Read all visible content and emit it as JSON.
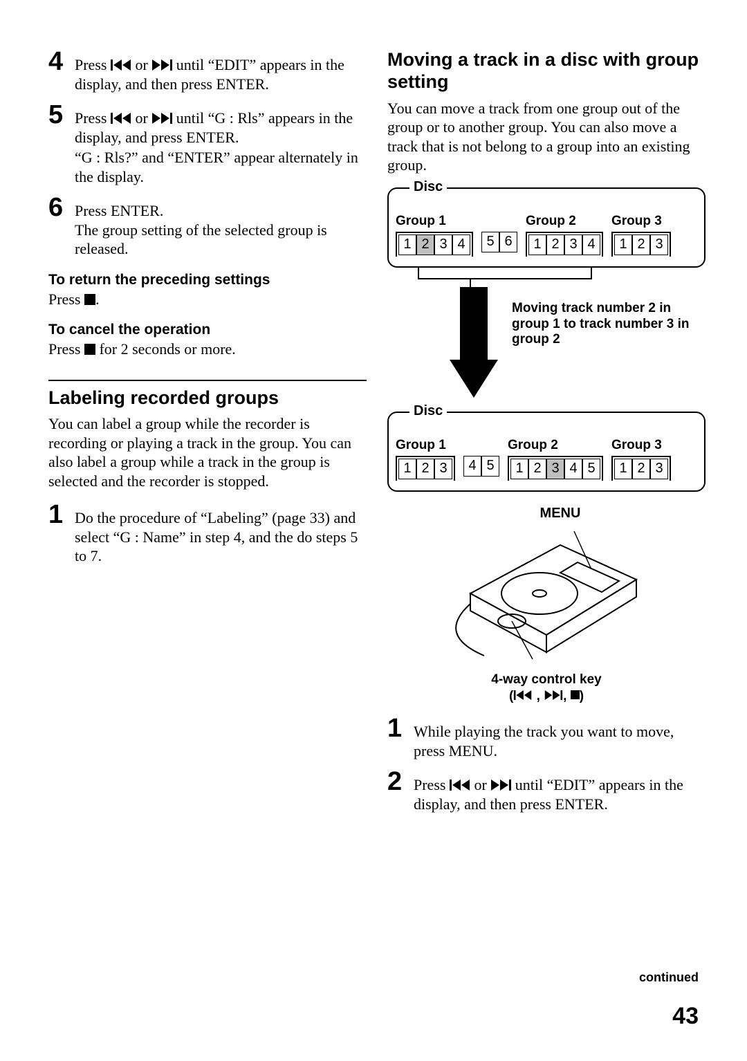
{
  "left": {
    "step4": {
      "n": "4",
      "pre": "Press ",
      "mid": " or ",
      "post": " until “EDIT” appears in the display, and then press ENTER."
    },
    "step5": {
      "n": "5",
      "pre": "Press ",
      "mid": " or ",
      "post": " until “G : Rls” appears in the display, and press ENTER.",
      "line2": "“G : Rls?” and “ENTER” appear alternately in the display."
    },
    "step6": {
      "n": "6",
      "line1": "Press ENTER.",
      "line2": "The group setting of the selected group is released."
    },
    "return_head": "To return the preceding settings",
    "return_body_pre": "Press ",
    "return_body_post": ".",
    "cancel_head": "To cancel the operation",
    "cancel_body_pre": "Press ",
    "cancel_body_post": " for 2 seconds or more.",
    "labeling_head": "Labeling recorded groups",
    "labeling_body": "You can label a group while the recorder is recording or playing a track in the group. You can also label a group while a track in the group is selected and the recorder is stopped.",
    "label_step1": {
      "n": "1",
      "text": "Do the procedure of “Labeling” (page 33) and select “G : Name” in step 4, and the do steps 5 to 7."
    }
  },
  "right": {
    "moving_head": "Moving a track in a disc with group setting",
    "moving_body": "You can move a track from one group out of the group or to another group. You can also move a track that is not belong to a group into an existing group.",
    "disc_label": "Disc",
    "groups_before": {
      "g1": {
        "label": "Group 1",
        "cells": [
          "1",
          "2",
          "3",
          "4"
        ],
        "hl": [
          1
        ]
      },
      "orphan": {
        "cells": [
          "5",
          "6"
        ]
      },
      "g2": {
        "label": "Group 2",
        "cells": [
          "1",
          "2",
          "3",
          "4"
        ]
      },
      "g3": {
        "label": "Group 3",
        "cells": [
          "1",
          "2",
          "3"
        ]
      }
    },
    "arrow_caption": "Moving track number 2 in group 1 to track number 3 in group 2",
    "groups_after": {
      "g1": {
        "label": "Group 1",
        "cells": [
          "1",
          "2",
          "3"
        ]
      },
      "orphan": {
        "cells": [
          "4",
          "5"
        ]
      },
      "g2": {
        "label": "Group 2",
        "cells": [
          "1",
          "2",
          "3",
          "4",
          "5"
        ],
        "hl": [
          2
        ]
      },
      "g3": {
        "label": "Group 3",
        "cells": [
          "1",
          "2",
          "3"
        ]
      }
    },
    "menu_label": "MENU",
    "ctrl_key_l1": "4-way control key",
    "ctrl_key_l2_pre": "(",
    "ctrl_key_l2_sep": " , ",
    "ctrl_key_l2_sep2": ", ",
    "ctrl_key_l2_post": ")",
    "step1": {
      "n": "1",
      "text": "While playing the track you want to move, press MENU."
    },
    "step2": {
      "n": "2",
      "pre": "Press ",
      "mid": " or ",
      "post": " until “EDIT” appears in the display, and then press ENTER."
    }
  },
  "continued": "continued",
  "page": "43",
  "colors": {
    "fg": "#000000",
    "bg": "#ffffff",
    "hl": "#bfbfbf"
  }
}
